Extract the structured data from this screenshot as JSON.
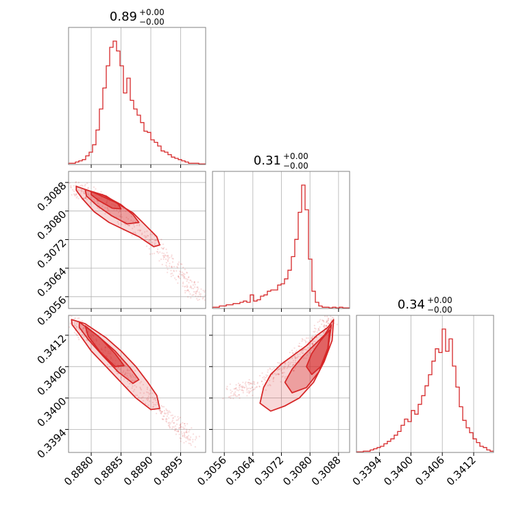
{
  "colors": {
    "main": "#d62728",
    "grid": "#b0b0b0",
    "frame": "#808080"
  },
  "chart_data": {
    "type": "corner",
    "parameters": [
      {
        "index": 0,
        "range": [
          0.88762,
          0.88992
        ],
        "ticks": [
          0.888,
          0.8885,
          0.889,
          0.8895
        ],
        "tick_labels": [
          "0.8880",
          "0.8885",
          "0.8890",
          "0.8895"
        ],
        "title": {
          "value": "0.89",
          "plus": "+0.00",
          "minus": "−0.00"
        }
      },
      {
        "index": 1,
        "range": [
          0.30527,
          0.30911
        ],
        "ticks": [
          0.3056,
          0.3064,
          0.3072,
          0.308,
          0.3088
        ],
        "tick_labels": [
          "0.3056",
          "0.3064",
          "0.3072",
          "0.3080",
          "0.3088"
        ],
        "title": {
          "value": "0.31",
          "plus": "+0.00",
          "minus": "−0.00"
        }
      },
      {
        "index": 2,
        "range": [
          0.33896,
          0.34158
        ],
        "ticks": [
          0.3394,
          0.34,
          0.3406,
          0.3412
        ],
        "tick_labels": [
          "0.3394",
          "0.3400",
          "0.3406",
          "0.3412"
        ],
        "title": {
          "value": "0.34",
          "plus": "+0.00",
          "minus": "−0.00"
        }
      }
    ],
    "histograms": [
      {
        "param": 0,
        "x0": 0.88762,
        "dx": 5.75e-05,
        "counts": [
          1,
          1,
          2,
          3,
          4,
          7,
          10,
          16,
          28,
          45,
          62,
          80,
          95,
          100,
          92,
          80,
          58,
          70,
          52,
          45,
          40,
          34,
          27,
          26,
          20,
          18,
          15,
          11,
          10,
          8,
          6,
          5,
          4,
          3,
          2,
          1,
          1,
          1,
          0.5,
          0.5
        ]
      },
      {
        "param": 1,
        "x0": 0.30527,
        "dx": 9.6e-05,
        "counts": [
          1,
          1,
          2,
          2,
          3,
          3,
          4,
          4,
          5,
          6,
          5,
          11,
          6,
          7,
          10,
          11,
          14,
          15,
          15,
          19,
          20,
          24,
          31,
          42,
          56,
          78,
          100,
          80,
          40,
          14,
          5,
          2,
          1,
          1,
          0.5,
          1,
          0.5,
          1,
          0.5,
          0.5
        ]
      },
      {
        "param": 2,
        "x0": 0.33896,
        "dx": 6.55e-05,
        "counts": [
          0.5,
          0.5,
          1,
          1,
          2,
          3,
          4,
          5,
          7,
          9,
          11,
          14,
          17,
          22,
          27,
          25,
          34,
          31,
          39,
          46,
          54,
          63,
          74,
          84,
          81,
          100,
          82,
          92,
          70,
          53,
          37,
          26,
          20,
          16,
          11,
          8,
          5,
          4,
          2,
          1
        ]
      }
    ],
    "joint": [
      {
        "x_param": 0,
        "y_param": 1,
        "ridge": [
          [
            0.88774,
            0.30867
          ],
          [
            0.888,
            0.30841
          ],
          [
            0.8885,
            0.30789
          ],
          [
            0.889,
            0.30716
          ],
          [
            0.8895,
            0.30621
          ],
          [
            0.88985,
            0.3055
          ]
        ],
        "contours": [
          {
            "level": "outer",
            "points": [
              [
                0.88775,
                0.30869
              ],
              [
                0.888,
                0.30855
              ],
              [
                0.8884,
                0.30825
              ],
              [
                0.8887,
                0.30795
              ],
              [
                0.8889,
                0.30762
              ],
              [
                0.8891,
                0.30728
              ],
              [
                0.88915,
                0.30705
              ],
              [
                0.88905,
                0.307
              ],
              [
                0.8888,
                0.30728
              ],
              [
                0.88855,
                0.30748
              ],
              [
                0.8883,
                0.30768
              ],
              [
                0.88805,
                0.30798
              ],
              [
                0.88785,
                0.30835
              ],
              [
                0.88775,
                0.30858
              ]
            ]
          },
          {
            "level": "middle",
            "points": [
              [
                0.8879,
                0.3086
              ],
              [
                0.8882,
                0.30845
              ],
              [
                0.8885,
                0.30818
              ],
              [
                0.8887,
                0.3079
              ],
              [
                0.8888,
                0.30768
              ],
              [
                0.8886,
                0.30764
              ],
              [
                0.88835,
                0.30786
              ],
              [
                0.8881,
                0.30815
              ],
              [
                0.88792,
                0.30842
              ]
            ]
          },
          {
            "level": "inner",
            "points": [
              [
                0.888,
                0.30855
              ],
              [
                0.88825,
                0.30842
              ],
              [
                0.88845,
                0.3082
              ],
              [
                0.8885,
                0.30806
              ],
              [
                0.88835,
                0.30808
              ],
              [
                0.88812,
                0.3083
              ],
              [
                0.888,
                0.30846
              ]
            ]
          }
        ]
      },
      {
        "x_param": 0,
        "y_param": 2,
        "ridge": [
          [
            0.88766,
            0.3415
          ],
          [
            0.888,
            0.34112
          ],
          [
            0.8885,
            0.34056
          ],
          [
            0.889,
            0.33996
          ],
          [
            0.8894,
            0.3395
          ],
          [
            0.88972,
            0.33918
          ]
        ],
        "contours": [
          {
            "level": "outer",
            "points": [
              [
                0.88767,
                0.3415
              ],
              [
                0.8879,
                0.34142
              ],
              [
                0.88825,
                0.34115
              ],
              [
                0.8885,
                0.3409
              ],
              [
                0.88875,
                0.3406
              ],
              [
                0.88895,
                0.3403
              ],
              [
                0.8891,
                0.34005
              ],
              [
                0.88915,
                0.3398
              ],
              [
                0.889,
                0.33978
              ],
              [
                0.88875,
                0.34
              ],
              [
                0.8885,
                0.3403
              ],
              [
                0.88825,
                0.3406
              ],
              [
                0.888,
                0.3409
              ],
              [
                0.8878,
                0.34122
              ],
              [
                0.88768,
                0.3414
              ]
            ]
          },
          {
            "level": "middle",
            "points": [
              [
                0.8878,
                0.34145
              ],
              [
                0.8881,
                0.3412
              ],
              [
                0.8884,
                0.3409
              ],
              [
                0.88865,
                0.34058
              ],
              [
                0.8888,
                0.34035
              ],
              [
                0.8887,
                0.34028
              ],
              [
                0.88845,
                0.3405
              ],
              [
                0.8882,
                0.3408
              ],
              [
                0.88795,
                0.34112
              ],
              [
                0.8878,
                0.34135
              ]
            ]
          },
          {
            "level": "inner",
            "points": [
              [
                0.8879,
                0.34138
              ],
              [
                0.88815,
                0.34115
              ],
              [
                0.8884,
                0.34085
              ],
              [
                0.88855,
                0.34062
              ],
              [
                0.8884,
                0.3406
              ],
              [
                0.88815,
                0.34088
              ],
              [
                0.88795,
                0.34118
              ]
            ]
          }
        ]
      },
      {
        "x_param": 1,
        "y_param": 2,
        "ridge": [
          [
            0.3057,
            0.3401
          ],
          [
            0.3064,
            0.3402
          ],
          [
            0.3072,
            0.3405
          ],
          [
            0.3078,
            0.3409
          ],
          [
            0.3083,
            0.3413
          ],
          [
            0.3086,
            0.3415
          ]
        ],
        "contours": [
          {
            "level": "outer",
            "points": [
              [
                0.30866,
                0.3415
              ],
              [
                0.3085,
                0.34135
              ],
              [
                0.3082,
                0.3412
              ],
              [
                0.3079,
                0.341
              ],
              [
                0.3076,
                0.34085
              ],
              [
                0.3072,
                0.34065
              ],
              [
                0.3069,
                0.34045
              ],
              [
                0.3067,
                0.3402
              ],
              [
                0.3066,
                0.3399
              ],
              [
                0.3069,
                0.33975
              ],
              [
                0.3073,
                0.33985
              ],
              [
                0.3077,
                0.34
              ],
              [
                0.3081,
                0.3403
              ],
              [
                0.3084,
                0.3407
              ],
              [
                0.30862,
                0.3411
              ]
            ]
          },
          {
            "level": "middle",
            "points": [
              [
                0.3086,
                0.3414
              ],
              [
                0.3084,
                0.3412
              ],
              [
                0.3081,
                0.341
              ],
              [
                0.3078,
                0.3408
              ],
              [
                0.3075,
                0.34055
              ],
              [
                0.3073,
                0.3403
              ],
              [
                0.3075,
                0.3401
              ],
              [
                0.3079,
                0.3402
              ],
              [
                0.30825,
                0.3405
              ],
              [
                0.3085,
                0.3409
              ]
            ]
          },
          {
            "level": "inner",
            "points": [
              [
                0.30855,
                0.3413
              ],
              [
                0.3083,
                0.3411
              ],
              [
                0.30805,
                0.34085
              ],
              [
                0.3079,
                0.3406
              ],
              [
                0.30805,
                0.34045
              ],
              [
                0.3083,
                0.3406
              ],
              [
                0.3085,
                0.34095
              ]
            ]
          }
        ]
      }
    ],
    "grid": true
  }
}
